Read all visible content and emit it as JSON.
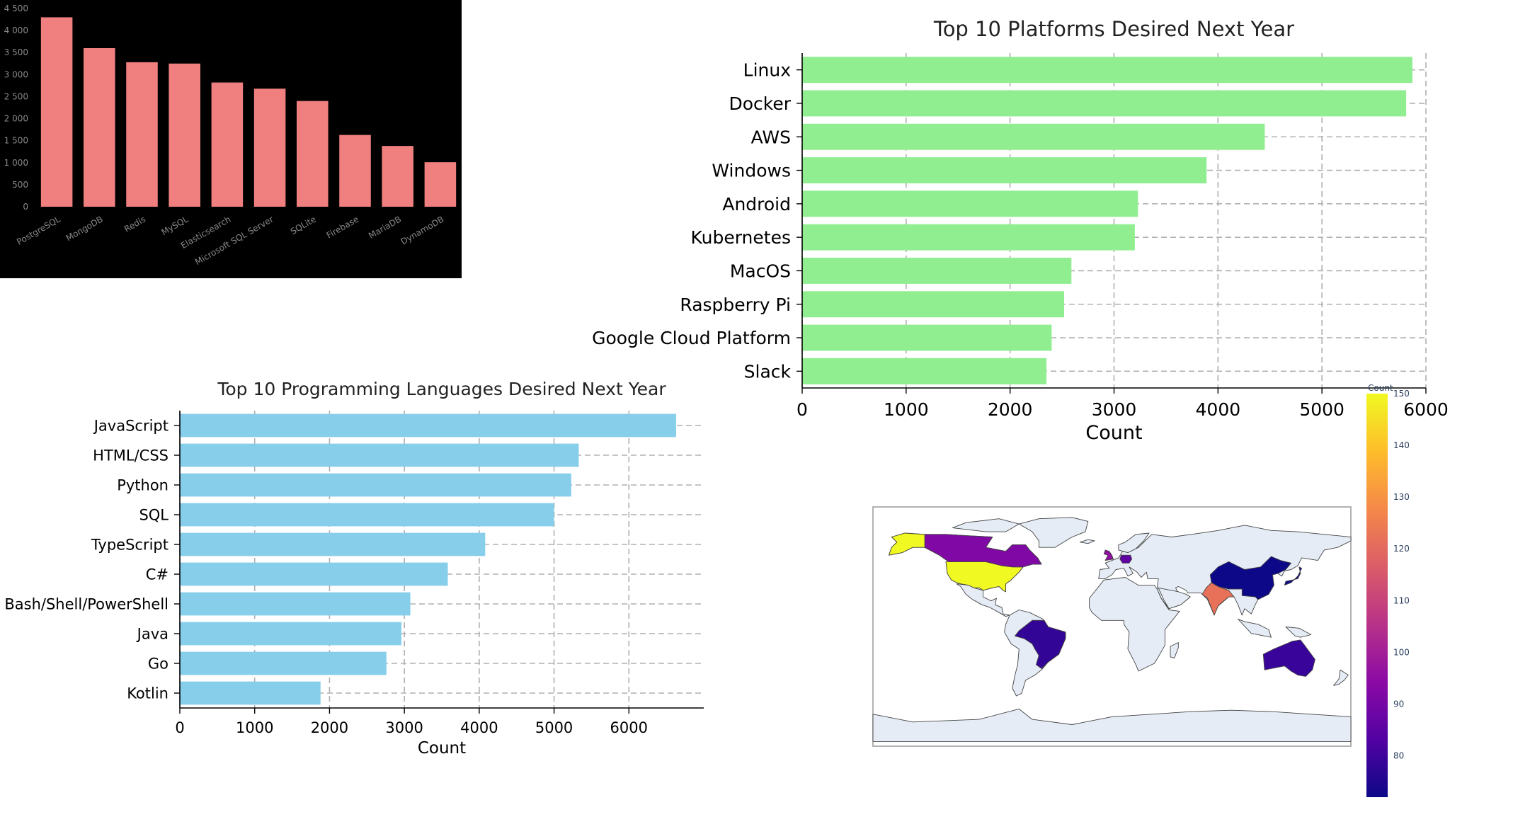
{
  "chart_data": [
    {
      "id": "databases",
      "type": "bar",
      "title": "",
      "xlabel": "",
      "ylabel": "",
      "categories": [
        "PostgreSQL",
        "MongoDB",
        "Redis",
        "MySQL",
        "Elasticsearch",
        "Microsoft SQL Server",
        "SQLite",
        "Firebase",
        "MariaDB",
        "DynamoDB"
      ],
      "values": [
        4300,
        3600,
        3280,
        3250,
        2820,
        2680,
        2400,
        1630,
        1380,
        1010
      ],
      "ylim": [
        0,
        4500
      ],
      "yticks": [
        0,
        500,
        1000,
        1500,
        2000,
        2500,
        3000,
        3500,
        4000,
        4500
      ],
      "ytick_labels": [
        "0",
        "500",
        "1 000",
        "1 500",
        "2 000",
        "2 500",
        "3 000",
        "3 500",
        "4 000",
        "4 500"
      ],
      "colors": {
        "background": "#000000",
        "bar": "#f08080",
        "text": "#888888"
      },
      "grid": false
    },
    {
      "id": "platforms",
      "type": "bar",
      "orientation": "horizontal",
      "title": "Top 10 Platforms Desired Next Year",
      "xlabel": "Count",
      "ylabel": "",
      "categories": [
        "Linux",
        "Docker",
        "AWS",
        "Windows",
        "Android",
        "Kubernetes",
        "MacOS",
        "Raspberry Pi",
        "Google Cloud Platform",
        "Slack"
      ],
      "values": [
        5870,
        5810,
        4450,
        3890,
        3230,
        3200,
        2590,
        2520,
        2400,
        2350
      ],
      "xlim": [
        0,
        6000
      ],
      "xticks": [
        0,
        1000,
        2000,
        3000,
        4000,
        5000,
        6000
      ],
      "colors": {
        "bar": "#90ee90",
        "grid": "#b0b0b0"
      },
      "grid": true
    },
    {
      "id": "languages",
      "type": "bar",
      "orientation": "horizontal",
      "title": "Top 10 Programming Languages Desired Next Year",
      "xlabel": "Count",
      "ylabel": "",
      "categories": [
        "JavaScript",
        "HTML/CSS",
        "Python",
        "SQL",
        "TypeScript",
        "C#",
        "Bash/Shell/PowerShell",
        "Java",
        "Go",
        "Kotlin"
      ],
      "values": [
        6630,
        5330,
        5230,
        5000,
        4080,
        3580,
        3080,
        2960,
        2760,
        1880
      ],
      "xlim": [
        0,
        7000
      ],
      "xticks": [
        0,
        1000,
        2000,
        3000,
        4000,
        5000,
        6000
      ],
      "colors": {
        "bar": "#87ceeb",
        "grid": "#b0b0b0"
      },
      "grid": true
    },
    {
      "id": "world-map",
      "type": "heatmap",
      "subtype": "choropleth",
      "title": "",
      "colorbar_title": "Count",
      "colorbar_range": [
        72,
        150
      ],
      "colorbar_ticks": [
        80,
        90,
        100,
        110,
        120,
        130,
        140,
        150
      ],
      "colorscale": [
        "#0d0887",
        "#5302a3",
        "#8b0aa5",
        "#b83289",
        "#db5c68",
        "#f48849",
        "#febd2a",
        "#f0f921"
      ],
      "regions": [
        {
          "name": "United States",
          "value": 150
        },
        {
          "name": "India",
          "value": 122
        },
        {
          "name": "Canada",
          "value": 92
        },
        {
          "name": "United Kingdom",
          "value": 96
        },
        {
          "name": "Germany",
          "value": 86
        },
        {
          "name": "Brazil",
          "value": 78
        },
        {
          "name": "Australia",
          "value": 79
        },
        {
          "name": "China",
          "value": 72
        },
        {
          "name": "Japan",
          "value": 72
        }
      ],
      "colors": {
        "land": "#e5ecf6",
        "coast": "#444444"
      }
    }
  ]
}
